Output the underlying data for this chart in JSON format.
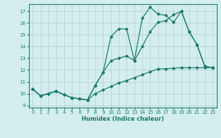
{
  "xlabel": "Humidex (Indice chaleur)",
  "bg_color": "#d4eeed",
  "grid_color": "#b8d8d8",
  "line_color": "#1a7a6e",
  "xlim": [
    -0.5,
    23.5
  ],
  "ylim": [
    8.8,
    17.6
  ],
  "xticks": [
    0,
    1,
    2,
    3,
    4,
    5,
    6,
    7,
    8,
    9,
    10,
    11,
    12,
    13,
    14,
    15,
    16,
    17,
    18,
    19,
    20,
    21,
    22,
    23
  ],
  "yticks": [
    9,
    10,
    11,
    12,
    13,
    14,
    15,
    16,
    17
  ],
  "line_upper": {
    "x": [
      0,
      1,
      2,
      3,
      4,
      5,
      6,
      7,
      8,
      9,
      10,
      11,
      12,
      13,
      14,
      15,
      16,
      17,
      18,
      19,
      20,
      21,
      22,
      23
    ],
    "y": [
      10.4,
      9.8,
      10.0,
      10.2,
      9.9,
      9.65,
      9.55,
      9.45,
      10.7,
      11.8,
      14.85,
      15.5,
      15.5,
      12.8,
      16.4,
      17.35,
      16.75,
      16.65,
      16.05,
      17.0,
      15.25,
      14.15,
      12.3,
      12.2
    ]
  },
  "line_mid": {
    "x": [
      0,
      1,
      2,
      3,
      4,
      5,
      6,
      7,
      8,
      9,
      10,
      11,
      12,
      13,
      14,
      15,
      16,
      17,
      18,
      19,
      20,
      21,
      22,
      23
    ],
    "y": [
      10.4,
      9.8,
      10.0,
      10.2,
      9.9,
      9.65,
      9.55,
      9.45,
      10.7,
      11.8,
      12.8,
      13.0,
      13.2,
      12.8,
      14.0,
      15.25,
      16.05,
      16.2,
      16.7,
      17.0,
      15.25,
      14.15,
      12.3,
      12.2
    ]
  },
  "line_lower": {
    "x": [
      0,
      1,
      2,
      3,
      4,
      5,
      6,
      7,
      8,
      9,
      10,
      11,
      12,
      13,
      14,
      15,
      16,
      17,
      18,
      19,
      20,
      21,
      22,
      23
    ],
    "y": [
      10.4,
      9.8,
      10.0,
      10.2,
      9.9,
      9.65,
      9.55,
      9.45,
      10.0,
      10.3,
      10.6,
      10.9,
      11.1,
      11.35,
      11.6,
      11.85,
      12.1,
      12.1,
      12.15,
      12.2,
      12.2,
      12.2,
      12.2,
      12.2
    ]
  }
}
